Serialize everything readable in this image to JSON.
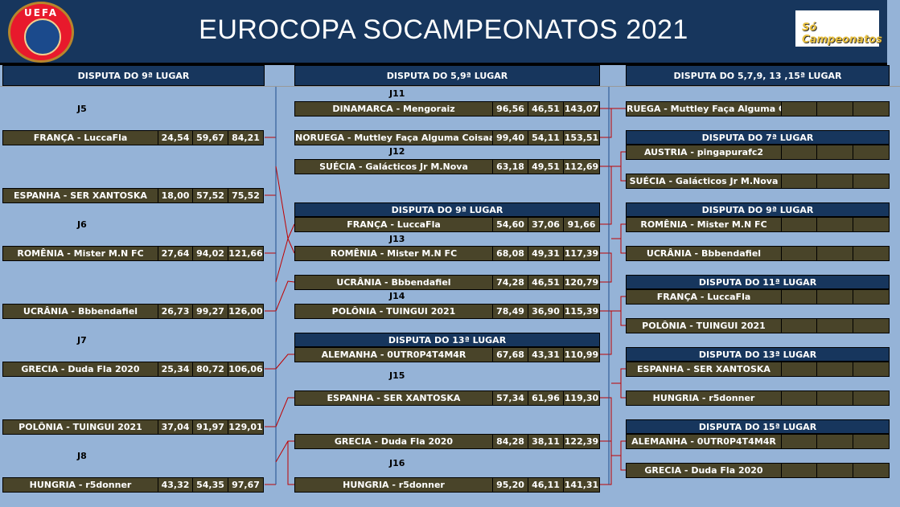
{
  "header": {
    "title": "EUROCOPA SOCAMPEONATOS  2021",
    "uefa_logo": "UEFA",
    "brand_logo": "Só Campeonatos"
  },
  "colors": {
    "header": "#17365d",
    "background": "#95b3d7",
    "row": "#494429",
    "connector": "#c00000"
  },
  "sections": [
    "DISPUTA DO 9ª LUGAR",
    "DISPUTA DO 5,9ª LUGAR",
    "DISPUTA DO 5,7,9, 13 ,15ª LUGAR"
  ],
  "left": {
    "labels": [
      "J5",
      "J6",
      "J7",
      "J8"
    ],
    "rows": [
      {
        "team": "FRANÇA - LuccaFla",
        "s": [
          "24,54",
          "59,67",
          "84,21"
        ]
      },
      {
        "team": "ESPANHA - SER XANTOSKA",
        "s": [
          "18,00",
          "57,52",
          "75,52"
        ]
      },
      {
        "team": "ROMÊNIA - Mister M.N FC",
        "s": [
          "27,64",
          "94,02",
          "121,66"
        ]
      },
      {
        "team": "UCRÂNIA - Bbbendafiel",
        "s": [
          "26,73",
          "99,27",
          "126,00"
        ]
      },
      {
        "team": "GRECIA - Duda Fla 2020",
        "s": [
          "25,34",
          "80,72",
          "106,06"
        ]
      },
      {
        "team": "POLÔNIA - TUINGUI 2021",
        "s": [
          "37,04",
          "91,97",
          "129,01"
        ]
      },
      {
        "team": "HUNGRIA - r5donner",
        "s": [
          "43,32",
          "54,35",
          "97,67"
        ]
      }
    ]
  },
  "middle": {
    "labels": [
      "J11",
      "J12",
      "J13",
      "J14",
      "J15",
      "J16"
    ],
    "headers": [
      "DISPUTA DO 9ª LUGAR",
      "DISPUTA DO 13ª LUGAR"
    ],
    "rows": [
      {
        "team": "DINAMARCA - Mengoraiz",
        "s": [
          "96,56",
          "46,51",
          "143,07"
        ]
      },
      {
        "team": "NORUEGA  - Muttley Faça Alguma Coisaaa",
        "s": [
          "99,40",
          "54,11",
          "153,51"
        ]
      },
      {
        "team": "SUÉCIA - Galácticos Jr M.Nova",
        "s": [
          "63,18",
          "49,51",
          "112,69"
        ]
      },
      {
        "team": "FRANÇA - LuccaFla",
        "s": [
          "54,60",
          "37,06",
          "91,66"
        ]
      },
      {
        "team": "ROMÊNIA - Mister M.N FC",
        "s": [
          "68,08",
          "49,31",
          "117,39"
        ]
      },
      {
        "team": "UCRÂNIA - Bbbendafiel",
        "s": [
          "74,28",
          "46,51",
          "120,79"
        ]
      },
      {
        "team": "POLÔNIA - TUINGUI 2021",
        "s": [
          "78,49",
          "36,90",
          "115,39"
        ]
      },
      {
        "team": "ALEMANHA - 0UTR0P4T4M4R",
        "s": [
          "67,68",
          "43,31",
          "110,99"
        ]
      },
      {
        "team": "ESPANHA - SER XANTOSKA",
        "s": [
          "57,34",
          "61,96",
          "119,30"
        ]
      },
      {
        "team": "GRECIA - Duda Fla 2020",
        "s": [
          "84,28",
          "38,11",
          "122,39"
        ]
      },
      {
        "team": "HUNGRIA - r5donner",
        "s": [
          "95,20",
          "46,11",
          "141,31"
        ]
      }
    ]
  },
  "right": {
    "headers": [
      "DISPUTA DO 7ª LUGAR",
      "DISPUTA DO 9ª LUGAR",
      "DISPUTA DO 11ª LUGAR",
      "DISPUTA DO 13ª LUGAR",
      "DISPUTA DO 15ª LUGAR"
    ],
    "rows": [
      {
        "team": "RUEGA  - Muttley Faça Alguma Cois",
        "s": [
          "",
          "",
          ""
        ]
      },
      {
        "team": "AUSTRIA - pingapurafc2",
        "s": [
          "",
          "",
          ""
        ]
      },
      {
        "team": "SUÉCIA - Galácticos Jr M.Nova",
        "s": [
          "",
          "",
          ""
        ]
      },
      {
        "team": "ROMÊNIA - Mister M.N FC",
        "s": [
          "",
          "",
          ""
        ]
      },
      {
        "team": "UCRÂNIA - Bbbendafiel",
        "s": [
          "",
          "",
          ""
        ]
      },
      {
        "team": "FRANÇA - LuccaFla",
        "s": [
          "",
          "",
          ""
        ]
      },
      {
        "team": "POLÔNIA - TUINGUI 2021",
        "s": [
          "",
          "",
          ""
        ]
      },
      {
        "team": "ESPANHA - SER XANTOSKA",
        "s": [
          "",
          "",
          ""
        ]
      },
      {
        "team": "HUNGRIA - r5donner",
        "s": [
          "",
          "",
          ""
        ]
      },
      {
        "team": "ALEMANHA - 0UTR0P4T4M4R",
        "s": [
          "",
          "",
          ""
        ]
      },
      {
        "team": "GRECIA - Duda Fla 2020",
        "s": [
          "",
          "",
          ""
        ]
      }
    ]
  }
}
